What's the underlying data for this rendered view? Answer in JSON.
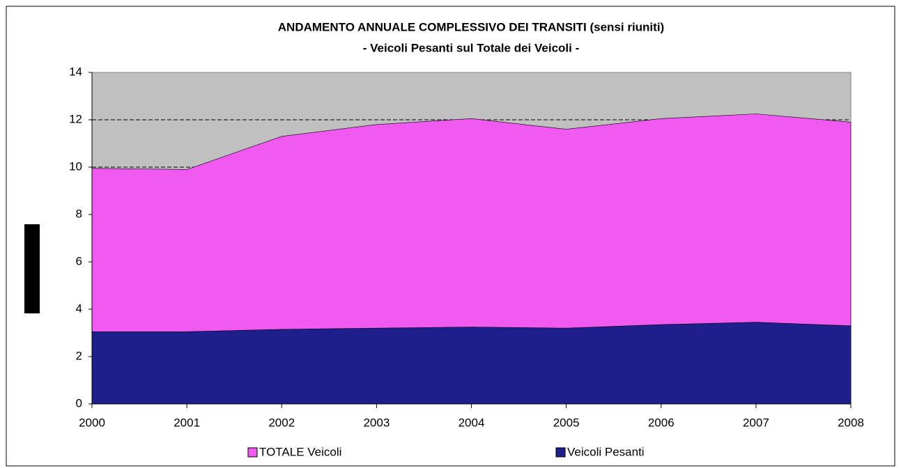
{
  "chart_data": {
    "type": "area",
    "title": "ANDAMENTO ANNUALE COMPLESSIVO DEI TRANSITI (sensi riuniti)",
    "subtitle": "- Veicoli Pesanti sul Totale dei Veicoli -",
    "categories": [
      "2000",
      "2001",
      "2002",
      "2003",
      "2004",
      "2005",
      "2006",
      "2007",
      "2008"
    ],
    "series": [
      {
        "name": "TOTALE Veicoli",
        "color": "#f05af0",
        "values": [
          9.95,
          9.9,
          11.3,
          11.8,
          12.05,
          11.6,
          12.05,
          12.25,
          11.9
        ]
      },
      {
        "name": "Veicoli Pesanti",
        "color": "#1e1e8c",
        "values": [
          3.05,
          3.05,
          3.15,
          3.2,
          3.25,
          3.2,
          3.35,
          3.45,
          3.3
        ]
      }
    ],
    "ylim": [
      0,
      14
    ],
    "yticks": [
      0,
      2,
      4,
      6,
      8,
      10,
      12,
      14
    ],
    "grid": true,
    "plot_background": "#c0c0c0"
  }
}
